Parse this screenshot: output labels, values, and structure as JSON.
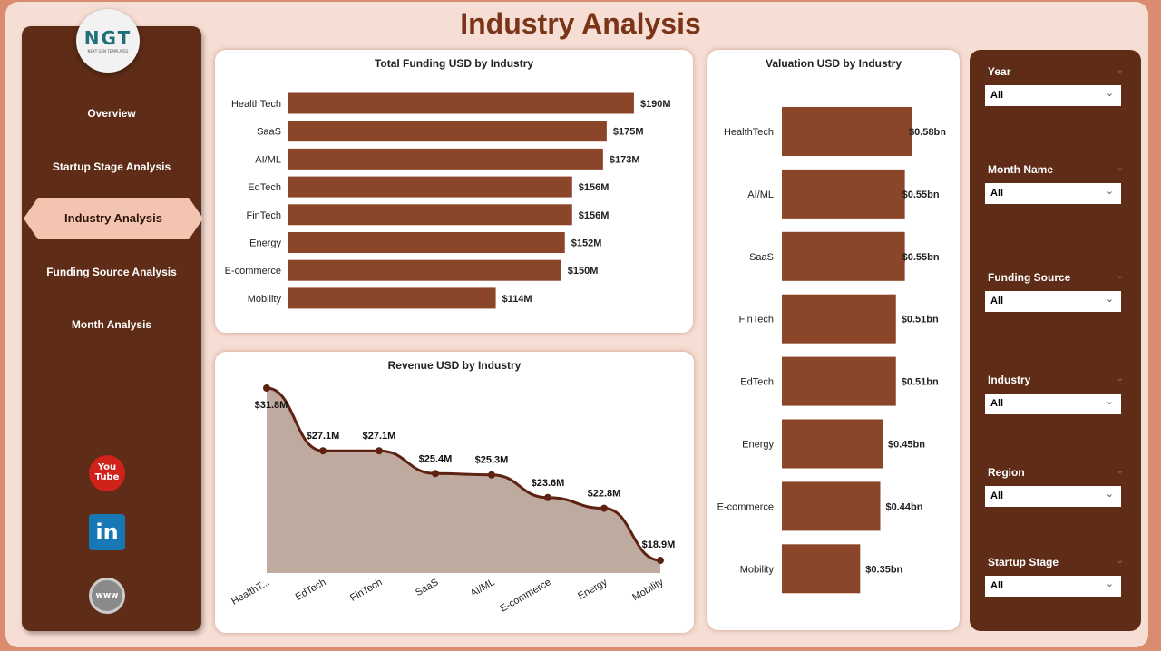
{
  "header": {
    "title": "Industry Analysis"
  },
  "logo": {
    "text": "NGT",
    "tagline": "NEXT GEN TEMPLATES"
  },
  "sidebar": {
    "items": [
      {
        "label": "Overview"
      },
      {
        "label": "Startup Stage Analysis"
      },
      {
        "label": "Industry Analysis",
        "active": true
      },
      {
        "label": "Funding Source Analysis"
      },
      {
        "label": "Month Analysis"
      }
    ],
    "social": [
      {
        "icon": "youtube-icon",
        "text": "You Tube"
      },
      {
        "icon": "linkedin-icon",
        "text": "in"
      },
      {
        "icon": "globe-icon",
        "text": "www"
      }
    ]
  },
  "filters": [
    {
      "label": "Year",
      "value": "All"
    },
    {
      "label": "Month Name",
      "value": "All"
    },
    {
      "label": "Funding Source",
      "value": "All"
    },
    {
      "label": "Industry",
      "value": "All"
    },
    {
      "label": "Region",
      "value": "All"
    },
    {
      "label": "Startup Stage",
      "value": "All"
    }
  ],
  "colors": {
    "bar": "#8b4528",
    "area": "#bfaaa0",
    "line": "#5e2212",
    "sidebar": "#5e2c17"
  },
  "chart_data": [
    {
      "type": "bar",
      "orientation": "horizontal",
      "title": "Total Funding USD by Industry",
      "categories": [
        "HealthTech",
        "SaaS",
        "AI/ML",
        "EdTech",
        "FinTech",
        "Energy",
        "E-commerce",
        "Mobility"
      ],
      "values": [
        190,
        175,
        173,
        156,
        156,
        152,
        150,
        114
      ],
      "labels": [
        "$190M",
        "$175M",
        "$173M",
        "$156M",
        "$156M",
        "$152M",
        "$150M",
        "$114M"
      ],
      "unit": "M USD"
    },
    {
      "type": "area",
      "title": "Revenue USD by Industry",
      "categories": [
        "HealthT...",
        "EdTech",
        "FinTech",
        "SaaS",
        "AI/ML",
        "E-commerce",
        "Energy",
        "Mobility"
      ],
      "values": [
        31.8,
        27.1,
        27.1,
        25.4,
        25.3,
        23.6,
        22.8,
        18.9
      ],
      "labels": [
        "$31.8M",
        "$27.1M",
        "$27.1M",
        "$25.4M",
        "$25.3M",
        "$23.6M",
        "$22.8M",
        "$18.9M"
      ],
      "unit": "M USD"
    },
    {
      "type": "bar",
      "orientation": "horizontal",
      "title": "Valuation USD by Industry",
      "categories": [
        "HealthTech",
        "AI/ML",
        "SaaS",
        "FinTech",
        "EdTech",
        "Energy",
        "E-commerce",
        "Mobility"
      ],
      "values": [
        0.58,
        0.55,
        0.55,
        0.51,
        0.51,
        0.45,
        0.44,
        0.35
      ],
      "labels": [
        "$0.58bn",
        "$0.55bn",
        "$0.55bn",
        "$0.51bn",
        "$0.51bn",
        "$0.45bn",
        "$0.44bn",
        "$0.35bn"
      ],
      "unit": "bn USD"
    }
  ]
}
